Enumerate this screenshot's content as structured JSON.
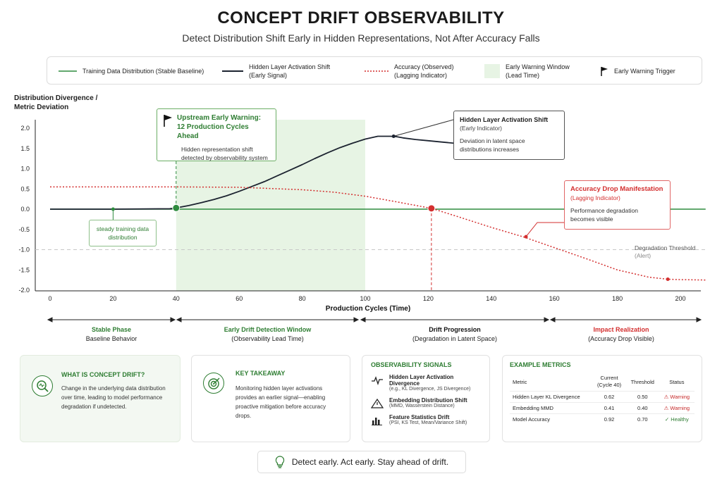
{
  "header": {
    "title": "CONCEPT DRIFT OBSERVABILITY",
    "subtitle": "Detect Distribution Shift Early in Hidden Representations, Not After Accuracy Falls"
  },
  "legend": {
    "training": "Training Data Distribution (Stable Baseline)",
    "hidden_1": "Hidden Layer Activation Shift",
    "hidden_2": "(Early Signal)",
    "accuracy_1": "Accuracy (Observed)",
    "accuracy_2": "(Lagging Indicator)",
    "window_1": "Early Warning Window",
    "window_2": "(Lead Time)",
    "trigger": "Early Warning Trigger"
  },
  "colors": {
    "green": "#2e8b3e",
    "dark_line": "#1c2330",
    "red": "#d32f2f",
    "window_fill": "#e7f4e4"
  },
  "chart_data": {
    "type": "line",
    "title": "",
    "xlabel": "Production Cycles (Time)",
    "ylabel": "Distribution Divergence / Metric Deviation",
    "xlim": [
      -4,
      208
    ],
    "ylim": [
      -2.0,
      2.2
    ],
    "xticks": [
      0,
      20,
      40,
      60,
      80,
      100,
      120,
      140,
      160,
      180,
      200
    ],
    "yticks": [
      2.0,
      1.5,
      1.0,
      0.5,
      0.0,
      -0.5,
      -1.0,
      -1.5,
      -2.0
    ],
    "ytick_labels": [
      "2.0",
      "1.5",
      "1.0",
      "0.5",
      "0.0",
      "-0.5",
      "-1.0",
      "-1.5",
      "-2.0"
    ],
    "threshold": -1.0,
    "threshold_label_1": "Degradation Threshold",
    "threshold_label_2": "(Alert)",
    "early_warning_window": [
      40,
      100
    ],
    "series": [
      {
        "name": "Training Data Distribution (Stable Baseline)",
        "x": [
          0,
          208
        ],
        "y": [
          0,
          0
        ]
      },
      {
        "name": "Hidden Layer Activation Shift",
        "x": [
          0,
          20,
          38,
          40,
          44,
          48,
          52,
          56,
          60,
          64,
          68,
          72,
          76,
          80,
          84,
          88,
          92,
          96,
          100,
          104,
          108,
          110,
          112,
          116,
          120,
          124,
          128
        ],
        "y": [
          0,
          0,
          0.01,
          0.03,
          0.09,
          0.16,
          0.24,
          0.33,
          0.44,
          0.56,
          0.68,
          0.82,
          0.96,
          1.1,
          1.25,
          1.39,
          1.52,
          1.63,
          1.73,
          1.8,
          1.8,
          1.79,
          1.76,
          1.72,
          1.69,
          1.66,
          1.63
        ]
      },
      {
        "name": "Accuracy (Observed)",
        "x": [
          0,
          20,
          40,
          60,
          80,
          90,
          100,
          110,
          121,
          130,
          140,
          150,
          160,
          170,
          180,
          190,
          196,
          200,
          208
        ],
        "y": [
          0.55,
          0.55,
          0.55,
          0.54,
          0.48,
          0.42,
          0.32,
          0.18,
          0.02,
          -0.2,
          -0.45,
          -0.68,
          -0.95,
          -1.22,
          -1.5,
          -1.68,
          -1.73,
          -1.74,
          -1.75
        ]
      }
    ],
    "markers": [
      {
        "x": 20,
        "y": 0,
        "series": "training"
      },
      {
        "x": 40,
        "y": 0.03,
        "series": "trigger"
      },
      {
        "x": 109,
        "y": 1.8,
        "series": "hidden"
      },
      {
        "x": 121,
        "y": 0.02,
        "series": "accuracy"
      },
      {
        "x": 151,
        "y": -0.68,
        "series": "accuracy"
      },
      {
        "x": 196,
        "y": -1.73,
        "series": "accuracy"
      }
    ]
  },
  "annotations": {
    "steady_1": "steady training data",
    "steady_2": "distribution",
    "upstream_title_1": "Upstream Early Warning:",
    "upstream_title_2": "12 Production Cycles Ahead",
    "upstream_body_1": "Hidden representation shift",
    "upstream_body_2": "detected by observability system",
    "hidden_title": "Hidden Layer Activation Shift",
    "hidden_sub": "(Early Indicator)",
    "hidden_body_1": "Deviation in latent space",
    "hidden_body_2": "distributions increases",
    "acc_title": "Accuracy Drop Manifestation",
    "acc_sub": "(Lagging Indicator)",
    "acc_body_1": "Performance degradation",
    "acc_body_2": "becomes visible"
  },
  "phases": [
    {
      "title": "Stable Phase",
      "sub": "Baseline Behavior"
    },
    {
      "title": "Early Drift Detection Window",
      "sub": "(Observability Lead Time)"
    },
    {
      "title": "Drift Progression",
      "sub": "(Degradation in Latent Space)"
    },
    {
      "title": "Impact Realization",
      "sub": "(Accuracy Drop Visible)"
    }
  ],
  "cards": {
    "what": {
      "title": "WHAT IS CONCEPT DRIFT?",
      "body": "Change in the underlying data distribution over time, leading to model performance degradation if undetected."
    },
    "takeaway": {
      "title": "KEY TAKEAWAY",
      "body": "Monitoring hidden layer activations provides an earlier signal—enabling proactive mitigation before accuracy drops."
    },
    "signals": {
      "title": "OBSERVABILITY SIGNALS",
      "items": [
        {
          "name": "Hidden Layer Activation Divergence",
          "detail": "(e.g., KL Divergence, JS Divergence)",
          "icon": "pulse-icon"
        },
        {
          "name": "Embedding Distribution Shift",
          "detail": "(MMD, Wasserstein Distance)",
          "icon": "warning-triangle-icon"
        },
        {
          "name": "Feature Statistics Drift",
          "detail": "(PSI, KS Test, Mean/Variance Shift)",
          "icon": "bar-chart-icon"
        }
      ]
    },
    "metrics": {
      "title": "EXAMPLE METRICS",
      "headers": {
        "metric": "Metric",
        "current_1": "Current",
        "current_2": "(Cycle 40)",
        "threshold": "Threshold",
        "status": "Status"
      },
      "rows": [
        {
          "metric": "Hidden Layer KL Divergence",
          "current": "0.62",
          "threshold": "0.50",
          "status": "Warning"
        },
        {
          "metric": "Embedding MMD",
          "current": "0.41",
          "threshold": "0.40",
          "status": "Warning"
        },
        {
          "metric": "Model Accuracy",
          "current": "0.92",
          "threshold": "0.70",
          "status": "Healthy"
        }
      ]
    }
  },
  "footer": {
    "text": "Detect early. Act early. Stay ahead of drift."
  }
}
